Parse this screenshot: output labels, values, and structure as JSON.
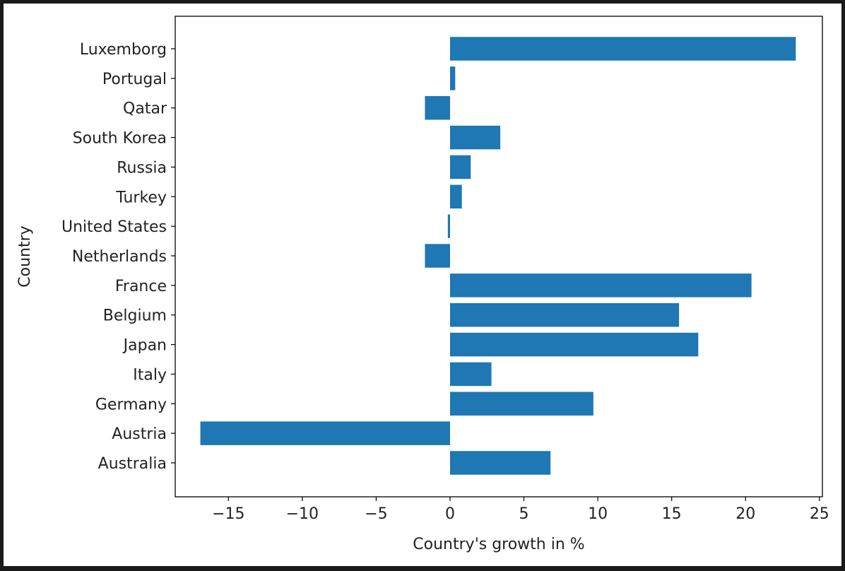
{
  "chart_data": {
    "type": "bar",
    "orientation": "horizontal",
    "title": "",
    "xlabel": "Country's growth in %",
    "ylabel": "Country",
    "categories": [
      "Australia",
      "Austria",
      "Germany",
      "Italy",
      "Japan",
      "Belgium",
      "France",
      "Netherlands",
      "United States",
      "Turkey",
      "Russia",
      "South Korea",
      "Qatar",
      "Portugal",
      "Luxemborg"
    ],
    "values": [
      6.8,
      -16.9,
      9.7,
      2.8,
      16.8,
      15.5,
      20.4,
      -1.7,
      -0.15,
      0.8,
      1.4,
      3.4,
      -1.7,
      0.35,
      23.4
    ],
    "xlim": [
      -18.6,
      25.2
    ],
    "xticks": [
      -15,
      -10,
      -5,
      0,
      5,
      10,
      15,
      20,
      25
    ],
    "xtick_labels": [
      "−15",
      "−10",
      "−5",
      "0",
      "5",
      "10",
      "15",
      "20",
      "25"
    ],
    "grid": false,
    "bar_color": "#1f77b4"
  }
}
